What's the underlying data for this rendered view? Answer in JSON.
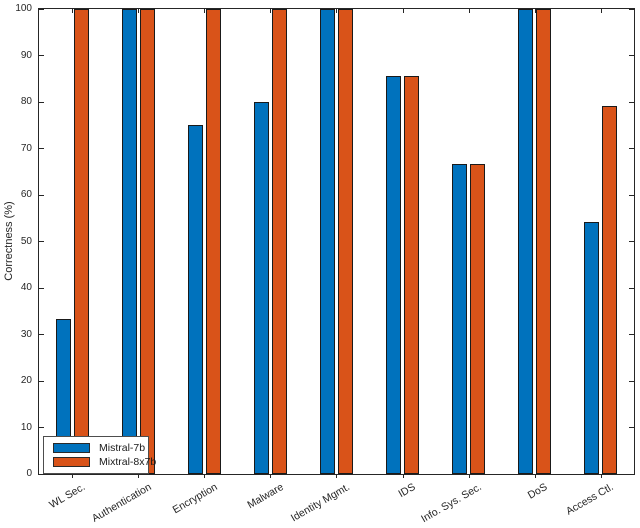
{
  "figure": {
    "background": "#ffffff",
    "axis_color": "#262626",
    "tick_label_color": "#262626"
  },
  "chart_data": {
    "type": "bar",
    "title": "",
    "xlabel": "",
    "ylabel": "Correctness (%)",
    "ylim": [
      0,
      100
    ],
    "yticks": [
      0,
      10,
      20,
      30,
      40,
      50,
      60,
      70,
      80,
      90,
      100
    ],
    "grid": false,
    "xtick_angle": 30,
    "legend_position": "bottom-left",
    "bar_edge_color": "#1a1a1a",
    "categories": [
      "WL Sec.",
      "Authentication",
      "Encryption",
      "Malware",
      "Identity Mgmt.",
      "IDS",
      "Info. Sys. Sec.",
      "DoS",
      "Access Ctl."
    ],
    "series": [
      {
        "name": "Mistral-7b",
        "color": "#0072BD",
        "values": [
          33.3,
          100,
          75,
          80,
          100,
          85.7,
          66.7,
          100,
          54.2
        ]
      },
      {
        "name": "Mixtral-8x7b",
        "color": "#D95319",
        "values": [
          100,
          100,
          100,
          100,
          100,
          85.7,
          66.7,
          100,
          79.2
        ]
      }
    ]
  }
}
